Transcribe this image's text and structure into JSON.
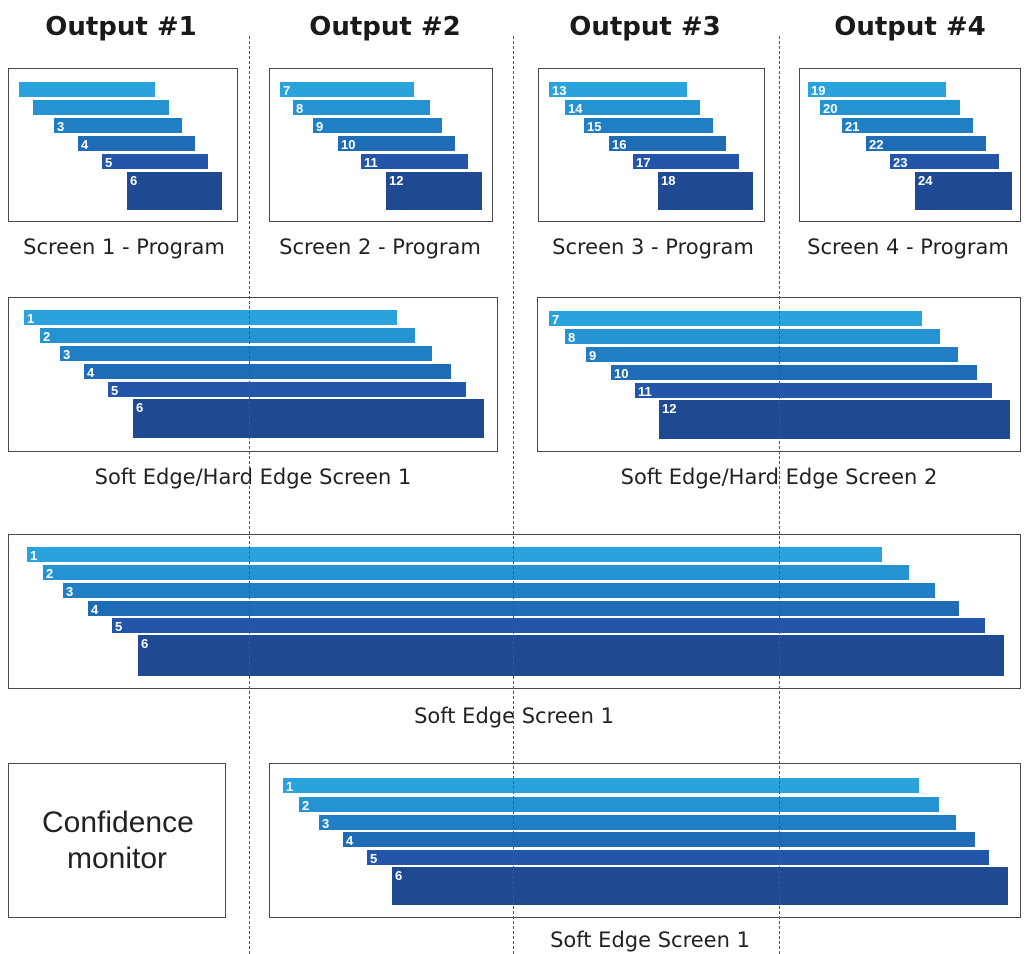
{
  "headers": [
    "Output #1",
    "Output #2",
    "Output #3",
    "Output #4"
  ],
  "layer_colors": [
    "#2aa3dc",
    "#2592d2",
    "#207fc4",
    "#1d6cb5",
    "#2355a8",
    "#1f4a92"
  ],
  "boxes": [
    {
      "caption": "Screen 1 - Program",
      "labels": [
        "",
        "",
        "3",
        "4",
        "5",
        "6"
      ]
    },
    {
      "caption": "Screen 2 - Program",
      "labels": [
        "7",
        "8",
        "9",
        "10",
        "11",
        "12"
      ]
    },
    {
      "caption": "Screen 3 - Program",
      "labels": [
        "13",
        "14",
        "15",
        "16",
        "17",
        "18"
      ]
    },
    {
      "caption": "Screen 4 - Program",
      "labels": [
        "19",
        "20",
        "21",
        "22",
        "23",
        "24"
      ]
    },
    {
      "caption": "Soft Edge/Hard Edge Screen 1",
      "labels": [
        "1",
        "2",
        "3",
        "4",
        "5",
        "6"
      ]
    },
    {
      "caption": "Soft Edge/Hard Edge Screen 2",
      "labels": [
        "7",
        "8",
        "9",
        "10",
        "11",
        "12"
      ]
    },
    {
      "caption": "Soft Edge Screen 1",
      "labels": [
        "1",
        "2",
        "3",
        "4",
        "5",
        "6"
      ]
    },
    {
      "caption": "Soft Edge Screen 1",
      "labels": [
        "1",
        "2",
        "3",
        "4",
        "5",
        "6"
      ]
    }
  ],
  "confidence_monitor": "Confidence monitor"
}
